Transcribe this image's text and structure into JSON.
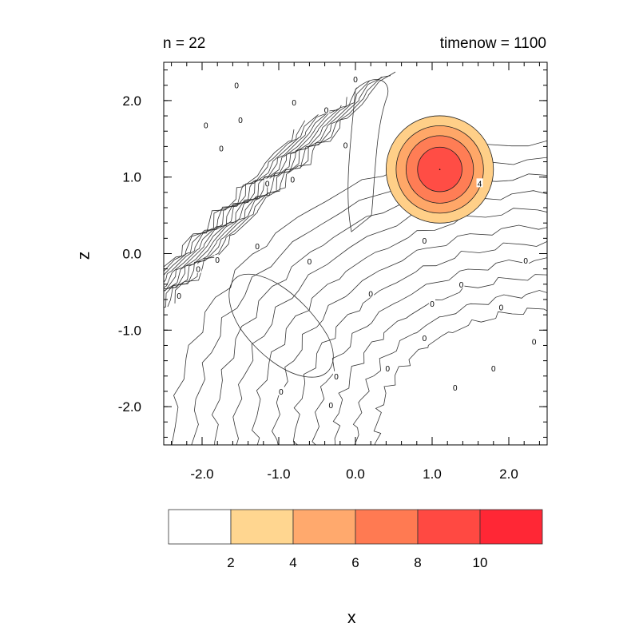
{
  "chart_data": {
    "type": "contour",
    "title_left": "n = 22",
    "title_right": "timenow = 1100",
    "xlabel": "x",
    "ylabel": "z",
    "xlim": [
      -2.5,
      2.5
    ],
    "ylim": [
      -2.5,
      2.5
    ],
    "x_ticks": [
      -2.0,
      -1.0,
      0.0,
      1.0,
      2.0
    ],
    "y_ticks": [
      2.0,
      1.0,
      0.0,
      -1.0,
      -2.0
    ],
    "x_tick_labels": [
      "-2.0",
      "-1.0",
      "0.0",
      "1.0",
      "2.0"
    ],
    "y_tick_labels": [
      "2.0",
      "1.0",
      "0.0",
      "-1.0",
      "-2.0"
    ],
    "contour_labels": [
      {
        "text": "0",
        "x": -1.55,
        "y": 2.2
      },
      {
        "text": "0",
        "x": -0.8,
        "y": 1.98
      },
      {
        "text": "0",
        "x": 0.0,
        "y": 2.28
      },
      {
        "text": "0",
        "x": -0.38,
        "y": 1.88
      },
      {
        "text": "0",
        "x": -1.5,
        "y": 1.75
      },
      {
        "text": "0",
        "x": -1.95,
        "y": 1.68
      },
      {
        "text": "0",
        "x": -1.75,
        "y": 1.38
      },
      {
        "text": "0",
        "x": -0.13,
        "y": 1.42
      },
      {
        "text": "0",
        "x": -1.15,
        "y": 0.92
      },
      {
        "text": "0",
        "x": -0.82,
        "y": 0.97
      },
      {
        "text": "0",
        "x": -1.28,
        "y": 0.1
      },
      {
        "text": "0",
        "x": -1.8,
        "y": -0.08
      },
      {
        "text": "0",
        "x": -0.6,
        "y": -0.1
      },
      {
        "text": "0",
        "x": -2.05,
        "y": -0.2
      },
      {
        "text": "0",
        "x": -2.3,
        "y": -0.55
      },
      {
        "text": "0",
        "x": 0.9,
        "y": 0.17
      },
      {
        "text": "0",
        "x": 1.38,
        "y": -0.4
      },
      {
        "text": "0",
        "x": 2.22,
        "y": -0.09
      },
      {
        "text": "0",
        "x": 0.2,
        "y": -0.52
      },
      {
        "text": "0",
        "x": 1.0,
        "y": -0.65
      },
      {
        "text": "0",
        "x": 1.9,
        "y": -0.7
      },
      {
        "text": "0",
        "x": 0.9,
        "y": -1.1
      },
      {
        "text": "0",
        "x": 2.33,
        "y": -1.15
      },
      {
        "text": "0",
        "x": 0.42,
        "y": -1.5
      },
      {
        "text": "0",
        "x": 1.8,
        "y": -1.5
      },
      {
        "text": "0",
        "x": 1.3,
        "y": -1.75
      },
      {
        "text": "0",
        "x": -0.25,
        "y": -1.6
      },
      {
        "text": "0",
        "x": -0.97,
        "y": -1.8
      },
      {
        "text": "0",
        "x": -0.32,
        "y": -1.98
      },
      {
        "text": "4",
        "x": 1.62,
        "y": 0.92
      }
    ],
    "peak": {
      "x": 1.1,
      "y": 1.1
    },
    "filled_circles": [
      {
        "level": 2,
        "radius": 0.7,
        "color": "#FFCF88"
      },
      {
        "level": 4,
        "radius": 0.57,
        "color": "#FFA768"
      },
      {
        "level": 6,
        "radius": 0.44,
        "color": "#FF7D55"
      },
      {
        "level": 8,
        "radius": 0.29,
        "color": "#FF4D45"
      }
    ],
    "colorbar": {
      "levels": [
        2,
        4,
        6,
        8,
        10
      ],
      "labels": [
        "2",
        "4",
        "6",
        "8",
        "10"
      ],
      "colors": [
        "#FFFFFF",
        "#FFD690",
        "#FFA96D",
        "#FF7A52",
        "#FF4942",
        "#FF2735"
      ]
    }
  }
}
